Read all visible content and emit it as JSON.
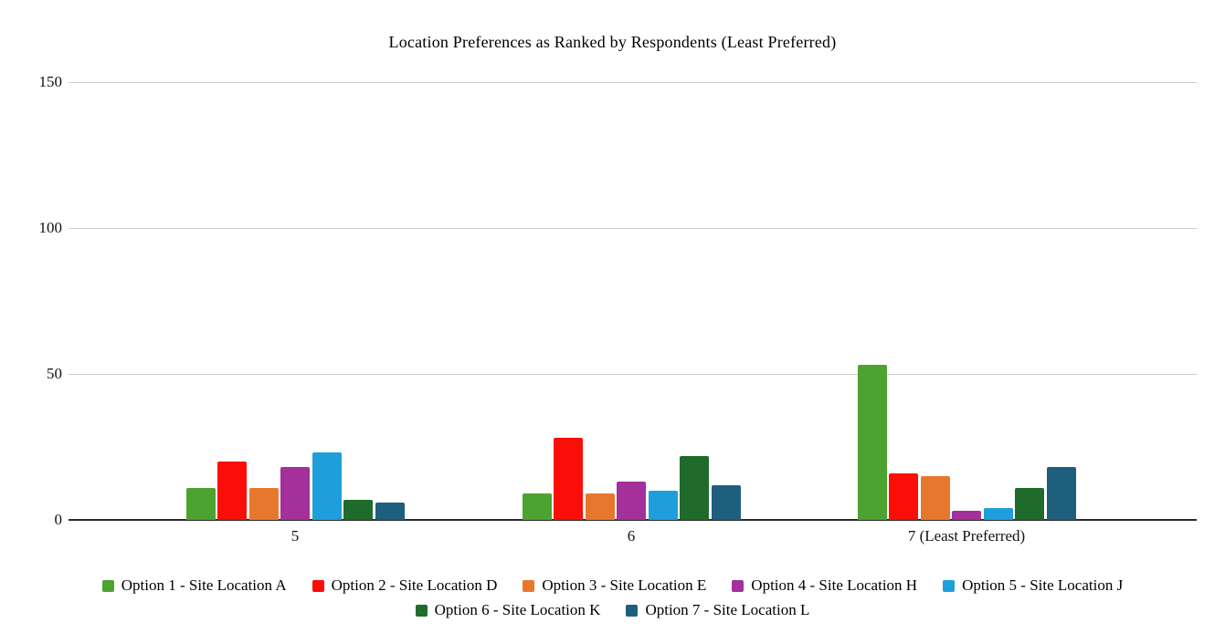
{
  "title": "Location Preferences as Ranked by Respondents (Least Preferred)",
  "chart_data": {
    "type": "bar",
    "title": "Location Preferences as Ranked by Respondents (Least Preferred)",
    "xlabel": "",
    "ylabel": "",
    "categories": [
      "5",
      "6",
      "7 (Least Preferred)"
    ],
    "series": [
      {
        "name": "Option 1 - Site Location A",
        "color": "#4DA32F",
        "values": [
          11,
          9,
          53
        ]
      },
      {
        "name": "Option 2 - Site Location D",
        "color": "#FB0E07",
        "values": [
          20,
          28,
          16
        ]
      },
      {
        "name": "Option 3 - Site Location E",
        "color": "#E8772E",
        "values": [
          11,
          9,
          15
        ]
      },
      {
        "name": "Option 4 - Site Location H",
        "color": "#A3309B",
        "values": [
          18,
          13,
          3
        ]
      },
      {
        "name": "Option 5 - Site Location J",
        "color": "#1E9FDB",
        "values": [
          23,
          10,
          4
        ]
      },
      {
        "name": "Option 6 - Site Location K",
        "color": "#1E6B2B",
        "values": [
          7,
          22,
          11
        ]
      },
      {
        "name": "Option 7 - Site Location L",
        "color": "#1E5F7E",
        "values": [
          6,
          12,
          18
        ]
      }
    ],
    "ylim": [
      0,
      150
    ],
    "yticks": [
      0,
      50,
      100,
      150
    ],
    "grid": true,
    "legend_position": "bottom",
    "legend_rows": [
      [
        0,
        1,
        2,
        3,
        4
      ],
      [
        5,
        6
      ]
    ]
  },
  "colors": {
    "background": "#FFFFFF",
    "gridline": "#CCCCCC",
    "axis": "#2B2B2B",
    "text": "#000000"
  }
}
